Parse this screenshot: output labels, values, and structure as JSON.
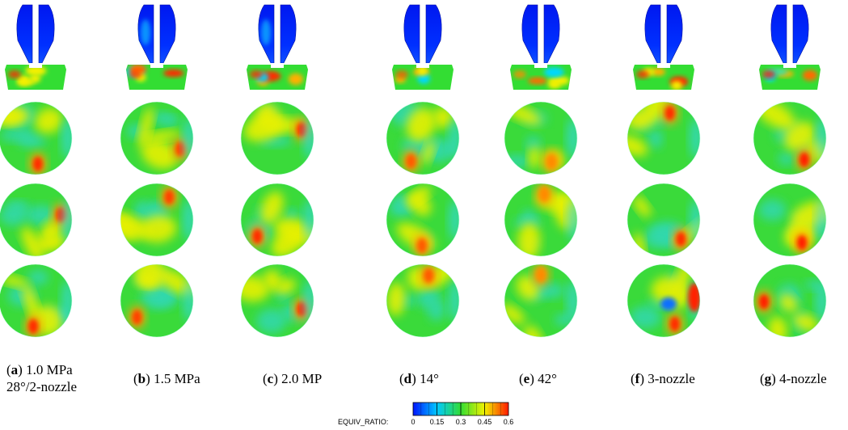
{
  "colormap": {
    "variable": "EQUIV_RATIO:",
    "ticks": [
      "0",
      "0.15",
      "0.3",
      "0.45",
      "0.6"
    ],
    "tick_values": [
      0,
      0.15,
      0.3,
      0.45,
      0.6
    ],
    "range": [
      0,
      0.6
    ],
    "stops": [
      "#0016ff",
      "#00c8ff",
      "#33dd33",
      "#f2f200",
      "#ff1a00"
    ]
  },
  "cases": [
    {
      "letter": "a",
      "label_line1": " 1.0 MPa",
      "label_line2": "28°/2-nozzle",
      "accent": "#ff2a00"
    },
    {
      "letter": "b",
      "label_line1": " 1.5 MPa",
      "label_line2": "",
      "accent": "#ff4000"
    },
    {
      "letter": "c",
      "label_line1": " 2.0 MP",
      "label_line2": "",
      "accent": "#ff2a00"
    },
    {
      "letter": "d",
      "label_line1": " 14°",
      "label_line2": "",
      "accent": "#ff5a00"
    },
    {
      "letter": "e",
      "label_line1": " 42°",
      "label_line2": "",
      "accent": "#ff8a00"
    },
    {
      "letter": "f",
      "label_line1": " 3-nozzle",
      "label_line2": "",
      "accent": "#ff2a00"
    },
    {
      "letter": "g",
      "label_line1": " 4-nozzle",
      "label_line2": "",
      "accent": "#ff1a00"
    }
  ]
}
